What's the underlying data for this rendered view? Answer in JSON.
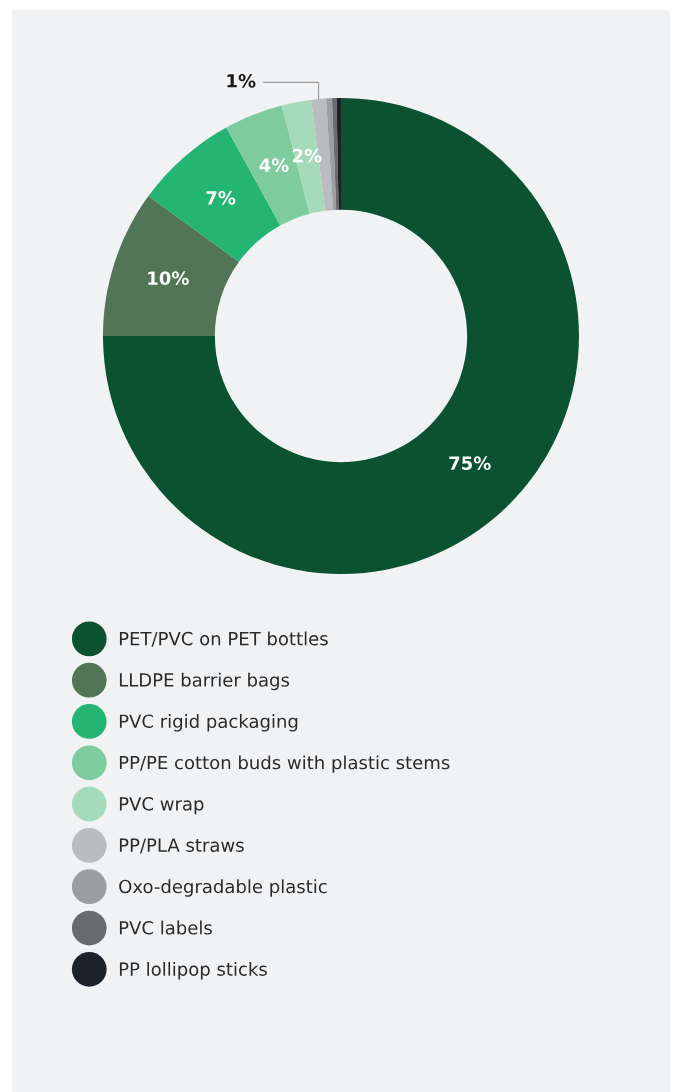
{
  "chart_data": {
    "type": "donut",
    "categories": [
      "PET/PVC on PET bottles",
      "LLDPE barrier bags",
      "PVC rigid packaging",
      "PP/PE cotton buds with plastic stems",
      "PVC wrap",
      "PP/PLA straws",
      "Oxo-degradable plastic",
      "PVC labels",
      "PP lollipop sticks"
    ],
    "values": [
      75,
      10,
      7,
      4,
      2,
      1,
      0.4,
      0.3,
      0.3
    ],
    "value_labels": [
      "75%",
      "10%",
      "7%",
      "4%",
      "2%",
      "1%",
      null,
      null,
      null
    ],
    "colors": [
      "#0a5230",
      "#527556",
      "#24b574",
      "#7ecb9e",
      "#a5dbbb",
      "#bbbcc0",
      "#9c9ea1",
      "#6a6b6f",
      "#1b222b"
    ],
    "legend": "bottom"
  }
}
